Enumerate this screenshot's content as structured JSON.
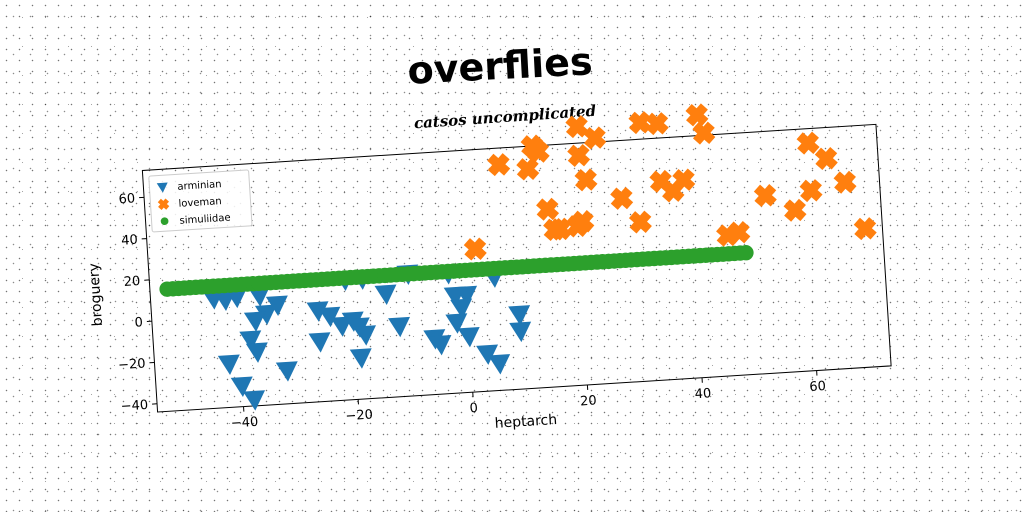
{
  "title": "overflies",
  "chart_data": {
    "type": "scatter",
    "title": "catsos uncomplicated",
    "xlabel": "heptarch",
    "ylabel": "broguery",
    "xlim": [
      -55,
      73
    ],
    "ylim": [
      -44,
      73
    ],
    "xticks": [
      -40,
      -20,
      0,
      20,
      40,
      60
    ],
    "yticks": [
      -40,
      -20,
      0,
      20,
      40,
      60
    ],
    "grid": false,
    "legend_position": "upper-left",
    "series": [
      {
        "name": "arminian",
        "marker": "triangle-down",
        "color": "#1f77b4",
        "points": [
          [
            -44,
            9
          ],
          [
            -42,
            8
          ],
          [
            -40,
            9
          ],
          [
            -36,
            9
          ],
          [
            -33,
            4
          ],
          [
            -35,
            0
          ],
          [
            -37,
            -3
          ],
          [
            -38,
            -12
          ],
          [
            -37,
            -18
          ],
          [
            -42,
            -23
          ],
          [
            -40,
            -34
          ],
          [
            -38,
            -41
          ],
          [
            -32,
            -28
          ],
          [
            -26,
            0
          ],
          [
            -24,
            -3
          ],
          [
            -22,
            -8
          ],
          [
            -26,
            -15
          ],
          [
            -20,
            -6
          ],
          [
            -19,
            -9
          ],
          [
            -18,
            -13
          ],
          [
            -19,
            -24
          ],
          [
            -18,
            14
          ],
          [
            -21,
            14
          ],
          [
            -14,
            6
          ],
          [
            -12,
            -10
          ],
          [
            -10,
            15
          ],
          [
            -6,
            -17
          ],
          [
            -5,
            -20
          ],
          [
            -3,
            14
          ],
          [
            -2,
            3
          ],
          [
            0,
            3
          ],
          [
            -2,
            -10
          ],
          [
            -1,
            -3
          ],
          [
            0,
            -17
          ],
          [
            3,
            -26
          ],
          [
            5,
            -31
          ],
          [
            5,
            11
          ],
          [
            9,
            -8
          ],
          [
            9,
            -16
          ]
        ]
      },
      {
        "name": "loveman",
        "marker": "x",
        "color": "#ff7f0e",
        "points": [
          [
            2,
            25
          ],
          [
            7,
            65
          ],
          [
            12,
            62
          ],
          [
            13,
            73
          ],
          [
            14,
            70
          ],
          [
            15,
            42
          ],
          [
            16,
            32
          ],
          [
            17,
            32
          ],
          [
            20,
            33
          ],
          [
            21,
            35
          ],
          [
            21,
            67
          ],
          [
            21,
            81
          ],
          [
            22,
            55
          ],
          [
            24,
            75
          ],
          [
            28,
            45
          ],
          [
            31,
            33
          ],
          [
            32,
            81
          ],
          [
            35,
            80
          ],
          [
            35,
            52
          ],
          [
            37,
            47
          ],
          [
            39,
            52
          ],
          [
            42,
            83
          ],
          [
            43,
            74
          ],
          [
            46,
            24
          ],
          [
            48,
            25
          ],
          [
            53,
            42
          ],
          [
            58,
            34
          ],
          [
            61,
            43
          ],
          [
            61,
            66
          ],
          [
            64,
            58
          ],
          [
            67,
            46
          ],
          [
            70,
            23
          ]
        ]
      },
      {
        "name": "simuliidae",
        "marker": "circle",
        "color": "#2ca02c",
        "points": [
          [
            -52,
            15
          ],
          [
            -51,
            15
          ],
          [
            -50,
            15
          ],
          [
            -49,
            15
          ],
          [
            -48,
            15
          ],
          [
            -47,
            15
          ],
          [
            -46,
            15
          ],
          [
            -45,
            15
          ],
          [
            -44,
            15
          ],
          [
            -43,
            15
          ],
          [
            -42,
            15
          ],
          [
            -41,
            15
          ],
          [
            -40,
            15
          ],
          [
            -39,
            15
          ],
          [
            -38,
            15
          ],
          [
            -37,
            15
          ],
          [
            -36,
            15
          ],
          [
            -35,
            15
          ],
          [
            -34,
            15
          ],
          [
            -33,
            15
          ],
          [
            -32,
            15
          ],
          [
            -31,
            15
          ],
          [
            -30,
            15
          ],
          [
            -29,
            15
          ],
          [
            -28,
            15
          ],
          [
            -27,
            15
          ],
          [
            -26,
            15
          ],
          [
            -25,
            15
          ],
          [
            -24,
            15
          ],
          [
            -23,
            15
          ],
          [
            -22,
            15
          ],
          [
            -21,
            15
          ],
          [
            -20,
            15
          ],
          [
            -19,
            15
          ],
          [
            -18,
            15
          ],
          [
            -17,
            15
          ],
          [
            -16,
            15
          ],
          [
            -15,
            15
          ],
          [
            -14,
            15
          ],
          [
            -13,
            15
          ],
          [
            -12,
            15
          ],
          [
            -11,
            15
          ],
          [
            -10,
            15
          ],
          [
            -9,
            15
          ],
          [
            -8,
            15
          ],
          [
            -7,
            15
          ],
          [
            -6,
            15
          ],
          [
            -5,
            15
          ],
          [
            -4,
            15
          ],
          [
            -3,
            15
          ],
          [
            -2,
            15
          ],
          [
            -1,
            15
          ],
          [
            0,
            15
          ],
          [
            1,
            15
          ],
          [
            2,
            15
          ],
          [
            3,
            15
          ],
          [
            4,
            15
          ],
          [
            5,
            15
          ],
          [
            6,
            15
          ],
          [
            7,
            15
          ],
          [
            8,
            15
          ],
          [
            9,
            15
          ],
          [
            10,
            15
          ],
          [
            11,
            15
          ],
          [
            12,
            15
          ],
          [
            13,
            15
          ],
          [
            14,
            15
          ],
          [
            15,
            15
          ],
          [
            16,
            15
          ],
          [
            17,
            15
          ],
          [
            18,
            15
          ],
          [
            19,
            15
          ],
          [
            20,
            15
          ],
          [
            21,
            15
          ],
          [
            22,
            15
          ],
          [
            23,
            15
          ],
          [
            24,
            15
          ],
          [
            25,
            15
          ],
          [
            26,
            15
          ],
          [
            27,
            15
          ],
          [
            28,
            15
          ],
          [
            29,
            15
          ],
          [
            30,
            15
          ],
          [
            31,
            15
          ],
          [
            32,
            15
          ],
          [
            33,
            15
          ],
          [
            34,
            15
          ],
          [
            35,
            15
          ],
          [
            36,
            15
          ],
          [
            37,
            15
          ],
          [
            38,
            15
          ],
          [
            39,
            15
          ],
          [
            40,
            15
          ],
          [
            41,
            15
          ],
          [
            42,
            15
          ],
          [
            43,
            15
          ],
          [
            44,
            15
          ],
          [
            45,
            15
          ],
          [
            46,
            15
          ],
          [
            47,
            15
          ],
          [
            48,
            15
          ],
          [
            49,
            15
          ]
        ]
      }
    ]
  }
}
